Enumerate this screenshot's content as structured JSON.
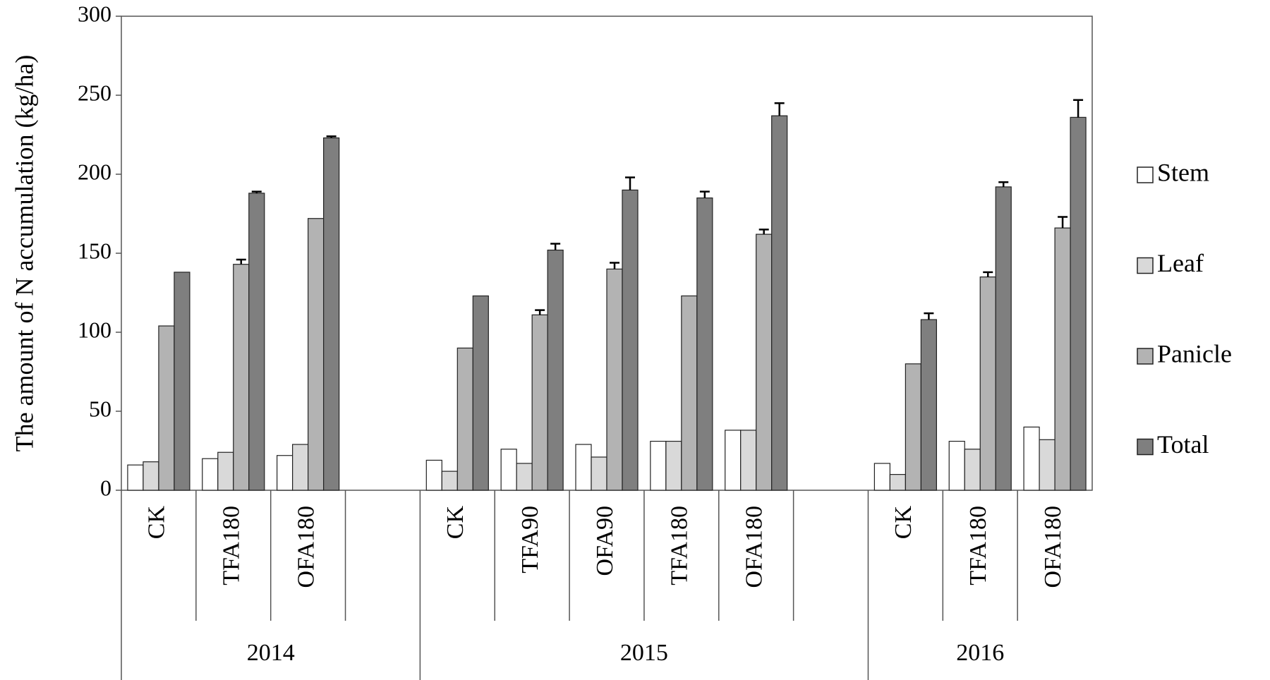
{
  "chart_data": {
    "type": "bar",
    "y_label": "The amount of N accumulation (kg/ha)",
    "groups": [
      {
        "name": "2014",
        "categories": [
          "CK",
          "TFA180",
          "OFA180",
          null
        ]
      },
      {
        "name": "2015",
        "categories": [
          "CK",
          "TFA90",
          "OFA90",
          "TFA180",
          "OFA180",
          null
        ]
      },
      {
        "name": "2016",
        "categories": [
          "CK",
          "TFA180",
          "OFA180"
        ]
      }
    ],
    "series": [
      {
        "name": "Stem",
        "color": "#ffffff",
        "values": [
          16,
          20,
          22,
          null,
          19,
          26,
          29,
          31,
          38,
          null,
          17,
          31,
          40
        ]
      },
      {
        "name": "Leaf",
        "color": "#d9d9d9",
        "values": [
          18,
          24,
          29,
          null,
          12,
          17,
          21,
          31,
          38,
          null,
          10,
          26,
          32
        ]
      },
      {
        "name": "Panicle",
        "color": "#b3b3b3",
        "values": [
          104,
          143,
          172,
          null,
          90,
          111,
          140,
          123,
          162,
          null,
          80,
          135,
          166
        ],
        "errors": [
          null,
          3,
          null,
          null,
          null,
          3,
          4,
          null,
          3,
          null,
          null,
          3,
          7
        ]
      },
      {
        "name": "Total",
        "color": "#7f7f7f",
        "values": [
          138,
          188,
          223,
          null,
          123,
          152,
          190,
          185,
          237,
          null,
          108,
          192,
          236
        ],
        "errors": [
          null,
          1,
          1,
          null,
          null,
          4,
          8,
          4,
          8,
          null,
          4,
          3,
          11
        ]
      }
    ],
    "ylim": [
      0,
      300
    ],
    "yticks": [
      0,
      50,
      100,
      150,
      200,
      250,
      300
    ],
    "legend": "right"
  }
}
